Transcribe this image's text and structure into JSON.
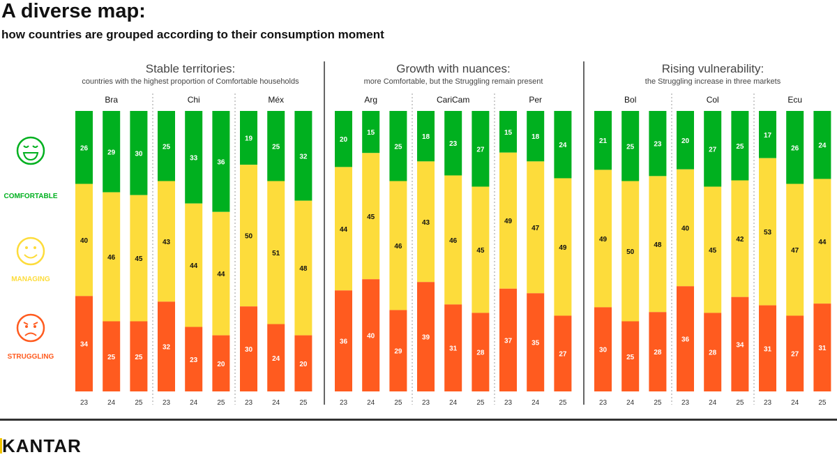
{
  "title": "A diverse map:",
  "subtitle": "how countries are grouped according to their consumption moment",
  "colors": {
    "comfortable": "#00B01F",
    "managing": "#FDDC3B",
    "struggling": "#FF5B1F"
  },
  "legend": [
    {
      "label": "COMFORTABLE",
      "icon": "laughing-face-icon",
      "color": "#00B01F"
    },
    {
      "label": "MANAGING",
      "icon": "smiling-face-icon",
      "color": "#FDDC3B"
    },
    {
      "label": "STRUGGLING",
      "icon": "frowning-face-icon",
      "color": "#FF5B1F"
    }
  ],
  "logo": "KANTAR",
  "chart_data": {
    "type": "stacked-bar",
    "series_order": [
      "Comfortable",
      "Managing",
      "Struggling"
    ],
    "x_tick_labels": [
      "23",
      "24",
      "25"
    ],
    "groups": [
      {
        "title": "Stable territories:",
        "subtitle": "countries with the highest proportion of Comfortable households",
        "countries": [
          {
            "name": "Bra",
            "values": [
              [
                26,
                40,
                34
              ],
              [
                29,
                46,
                25
              ],
              [
                30,
                45,
                25
              ]
            ]
          },
          {
            "name": "Chi",
            "values": [
              [
                25,
                43,
                32
              ],
              [
                33,
                44,
                23
              ],
              [
                36,
                44,
                20
              ]
            ]
          },
          {
            "name": "Méx",
            "values": [
              [
                19,
                50,
                30
              ],
              [
                25,
                51,
                24
              ],
              [
                32,
                48,
                20
              ]
            ]
          }
        ]
      },
      {
        "title": "Growth with nuances:",
        "subtitle": "more Comfortable, but the Struggling remain present",
        "countries": [
          {
            "name": "Arg",
            "values": [
              [
                20,
                44,
                36
              ],
              [
                15,
                45,
                40
              ],
              [
                25,
                46,
                29
              ]
            ]
          },
          {
            "name": "CariCam",
            "values": [
              [
                18,
                43,
                39
              ],
              [
                23,
                46,
                31
              ],
              [
                27,
                45,
                28
              ]
            ]
          },
          {
            "name": "Per",
            "values": [
              [
                15,
                49,
                37
              ],
              [
                18,
                47,
                35
              ],
              [
                24,
                49,
                27
              ]
            ]
          }
        ]
      },
      {
        "title": "Rising vulnerability:",
        "subtitle": "the Struggling increase in three markets",
        "countries": [
          {
            "name": "Bol",
            "values": [
              [
                21,
                49,
                30
              ],
              [
                25,
                50,
                25
              ],
              [
                23,
                48,
                28
              ]
            ]
          },
          {
            "name": "Col",
            "values": [
              [
                20,
                40,
                36
              ],
              [
                27,
                45,
                28
              ],
              [
                25,
                42,
                34
              ]
            ]
          },
          {
            "name": "Ecu",
            "values": [
              [
                17,
                53,
                31
              ],
              [
                26,
                47,
                27
              ],
              [
                24,
                44,
                31
              ]
            ]
          }
        ]
      }
    ]
  }
}
